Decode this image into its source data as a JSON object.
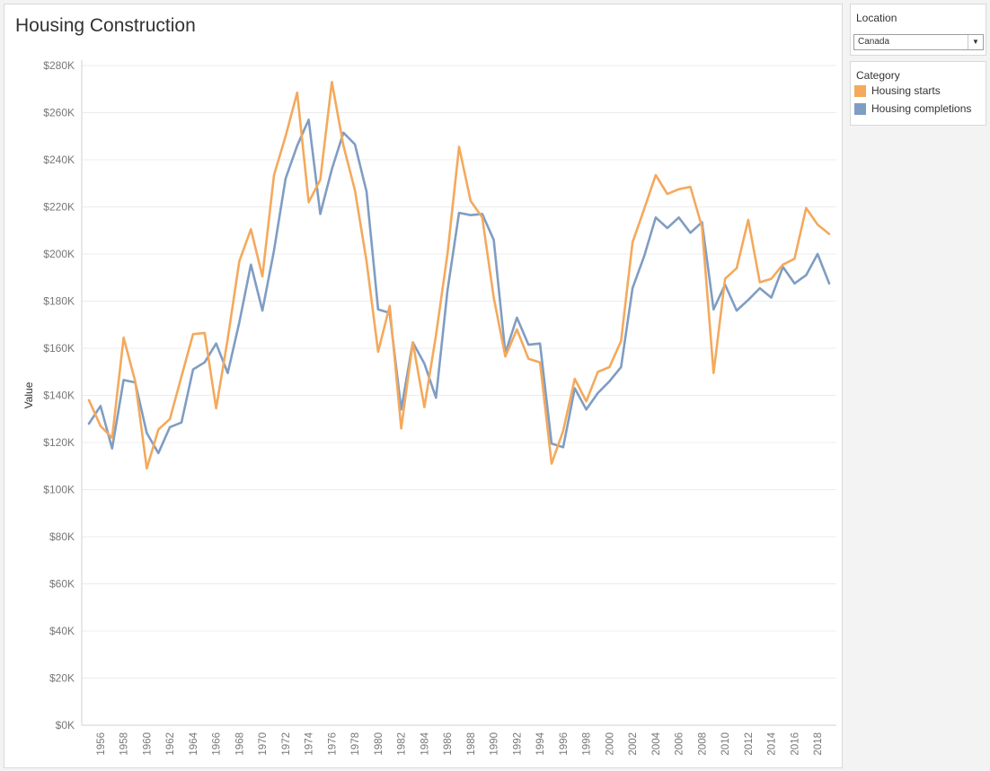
{
  "title": "Housing Construction",
  "location": {
    "label": "Location",
    "selected": "Canada"
  },
  "legend": {
    "title": "Category",
    "items": [
      {
        "label": "Housing starts",
        "color": "#f4a95c"
      },
      {
        "label": "Housing completions",
        "color": "#7f9dc3"
      }
    ]
  },
  "chart_data": {
    "type": "line",
    "ylabel": "Value",
    "xlabel": "",
    "ylim": [
      0,
      280000
    ],
    "y_ticks": [
      "$0K",
      "$20K",
      "$40K",
      "$60K",
      "$80K",
      "$100K",
      "$120K",
      "$140K",
      "$160K",
      "$180K",
      "$200K",
      "$220K",
      "$240K",
      "$260K",
      "$280K"
    ],
    "x_ticks": [
      "1956",
      "1958",
      "1960",
      "1962",
      "1964",
      "1966",
      "1968",
      "1970",
      "1972",
      "1974",
      "1976",
      "1978",
      "1980",
      "1982",
      "1984",
      "1986",
      "1988",
      "1990",
      "1992",
      "1994",
      "1996",
      "1998",
      "2000",
      "2002",
      "2004",
      "2006",
      "2008",
      "2010",
      "2012",
      "2014",
      "2016",
      "2018"
    ],
    "grid": true,
    "x": [
      1955,
      1956,
      1957,
      1958,
      1959,
      1960,
      1961,
      1962,
      1963,
      1964,
      1965,
      1966,
      1967,
      1968,
      1969,
      1970,
      1971,
      1972,
      1973,
      1974,
      1975,
      1976,
      1977,
      1978,
      1979,
      1980,
      1981,
      1982,
      1983,
      1984,
      1985,
      1986,
      1987,
      1988,
      1989,
      1990,
      1991,
      1992,
      1993,
      1994,
      1995,
      1996,
      1997,
      1998,
      1999,
      2000,
      2001,
      2002,
      2003,
      2004,
      2005,
      2006,
      2007,
      2008,
      2009,
      2010,
      2011,
      2012,
      2013,
      2014,
      2015,
      2016,
      2017,
      2018,
      2019
    ],
    "series": [
      {
        "name": "Housing starts",
        "values": [
          138000,
          127000,
          122000,
          164500,
          146000,
          109000,
          125500,
          130000,
          148000,
          166000,
          166500,
          134500,
          164000,
          197000,
          210500,
          190500,
          233500,
          250000,
          268500,
          222000,
          231500,
          273000,
          246000,
          227000,
          197000,
          158500,
          178000,
          126000,
          162500,
          135000,
          165500,
          200000,
          245500,
          222500,
          215500,
          181500,
          156500,
          168000,
          155500,
          154000,
          111000,
          125000,
          147000,
          137500,
          150000,
          152000,
          163000,
          205000,
          219000,
          233500,
          225500,
          227500,
          228500,
          211500,
          149500,
          189500,
          194000,
          214500,
          188000,
          189500,
          195500,
          198000,
          219500,
          212500,
          208500
        ]
      },
      {
        "name": "Housing completions",
        "values": [
          128000,
          135500,
          117500,
          146500,
          145500,
          124000,
          115500,
          126500,
          128500,
          151000,
          154000,
          162000,
          149500,
          171000,
          195500,
          176000,
          201500,
          232000,
          246000,
          257000,
          217000,
          236000,
          251500,
          246500,
          226500,
          176500,
          175000,
          134000,
          162500,
          153500,
          139000,
          184500,
          217500,
          216500,
          217000,
          206000,
          158000,
          173000,
          161500,
          162000,
          119500,
          118000,
          143000,
          134000,
          141000,
          146000,
          152000,
          185500,
          199000,
          215500,
          211000,
          215500,
          209000,
          213500,
          176500,
          187000,
          176000,
          180500,
          185500,
          181500,
          194500,
          187500,
          191000,
          200000,
          187500
        ]
      }
    ]
  }
}
